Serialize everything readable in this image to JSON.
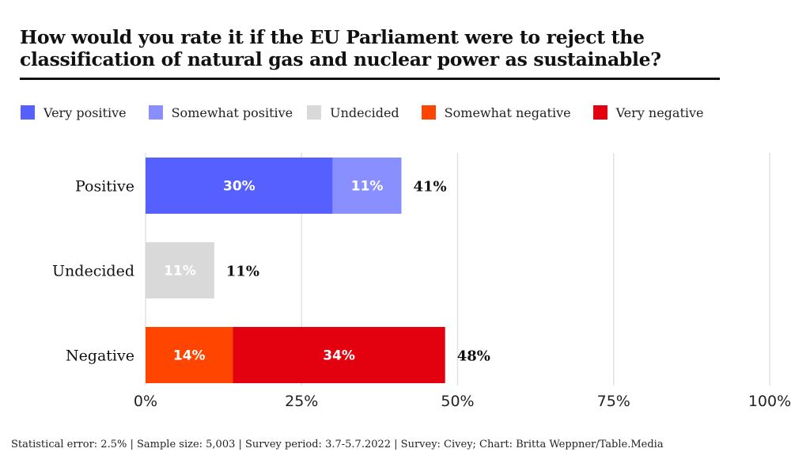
{
  "title": "How would you rate it if the EU Parliament were to reject the classification of natural gas and nuclear power as sustainable?",
  "legend": [
    {
      "label": "Very positive",
      "color": "#5560ff"
    },
    {
      "label": "Somewhat positive",
      "color": "#8a8fff"
    },
    {
      "label": "Undecided",
      "color": "#d9d9d9"
    },
    {
      "label": "Somewhat negative",
      "color": "#ff4500"
    },
    {
      "label": "Very negative",
      "color": "#e3000f"
    }
  ],
  "footer": "Statistical error: 2.5% | Sample size: 5,003 | Survey period: 3.7-5.7.2022 | Survey: Civey; Chart: Britta Weppner/Table.Media",
  "chart_data": {
    "type": "bar",
    "orientation": "horizontal",
    "stacked": true,
    "title": "How would you rate it if the EU Parliament were to reject the classification of natural gas and nuclear power as sustainable?",
    "xlabel": "",
    "ylabel": "",
    "xlim": [
      0,
      100
    ],
    "x_ticks": [
      0,
      25,
      50,
      75,
      100
    ],
    "x_tick_labels": [
      "0%",
      "25%",
      "50%",
      "75%",
      "100%"
    ],
    "grid": true,
    "legend_position": "top-left",
    "categories": [
      "Positive",
      "Undecided",
      "Negative"
    ],
    "rows": [
      {
        "category": "Positive",
        "total": 41,
        "total_label": "41%",
        "segments": [
          {
            "series": "Very positive",
            "value": 30,
            "label": "30%",
            "color": "#5560ff"
          },
          {
            "series": "Somewhat positive",
            "value": 11,
            "label": "11%",
            "color": "#8a8fff"
          }
        ]
      },
      {
        "category": "Undecided",
        "total": 11,
        "total_label": "11%",
        "segments": [
          {
            "series": "Undecided",
            "value": 11,
            "label": "11%",
            "color": "#d9d9d9"
          }
        ]
      },
      {
        "category": "Negative",
        "total": 48,
        "total_label": "48%",
        "segments": [
          {
            "series": "Somewhat negative",
            "value": 14,
            "label": "14%",
            "color": "#ff4500"
          },
          {
            "series": "Very negative",
            "value": 34,
            "label": "34%",
            "color": "#e3000f"
          }
        ]
      }
    ],
    "series": [
      {
        "name": "Very positive",
        "values": [
          30,
          0,
          0
        ]
      },
      {
        "name": "Somewhat positive",
        "values": [
          11,
          0,
          0
        ]
      },
      {
        "name": "Undecided",
        "values": [
          0,
          11,
          0
        ]
      },
      {
        "name": "Somewhat negative",
        "values": [
          0,
          0,
          14
        ]
      },
      {
        "name": "Very negative",
        "values": [
          0,
          0,
          34
        ]
      }
    ]
  }
}
